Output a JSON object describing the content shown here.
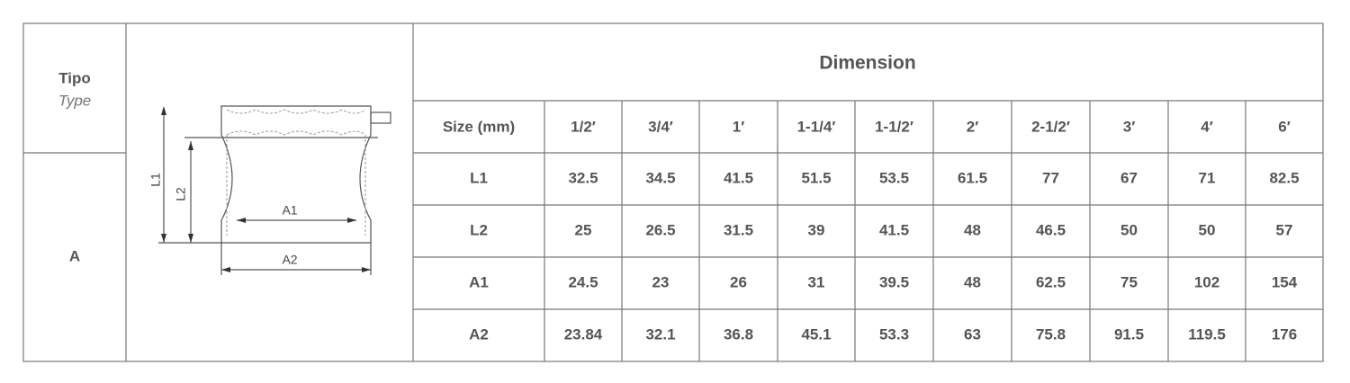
{
  "header": {
    "tipo": "Tipo",
    "type": "Type",
    "dimension": "Dimension"
  },
  "type_value": "A",
  "drawing": {
    "labels": [
      "L1",
      "L2",
      "A1",
      "A2"
    ]
  },
  "table": {
    "columns": [
      "Size (mm)",
      "1/2′",
      "3/4′",
      "1′",
      "1-1/4′",
      "1-1/2′",
      "2′",
      "2-1/2′",
      "3′",
      "4′",
      "6′"
    ],
    "rows": [
      [
        "L1",
        "32.5",
        "34.5",
        "41.5",
        "51.5",
        "53.5",
        "61.5",
        "77",
        "67",
        "71",
        "82.5"
      ],
      [
        "L2",
        "25",
        "26.5",
        "31.5",
        "39",
        "41.5",
        "48",
        "46.5",
        "50",
        "50",
        "57"
      ],
      [
        "A1",
        "24.5",
        "23",
        "26",
        "31",
        "39.5",
        "48",
        "62.5",
        "75",
        "102",
        "154"
      ],
      [
        "A2",
        "23.84",
        "32.1",
        "36.8",
        "45.1",
        "53.3",
        "63",
        "75.8",
        "91.5",
        "119.5",
        "176"
      ]
    ]
  }
}
